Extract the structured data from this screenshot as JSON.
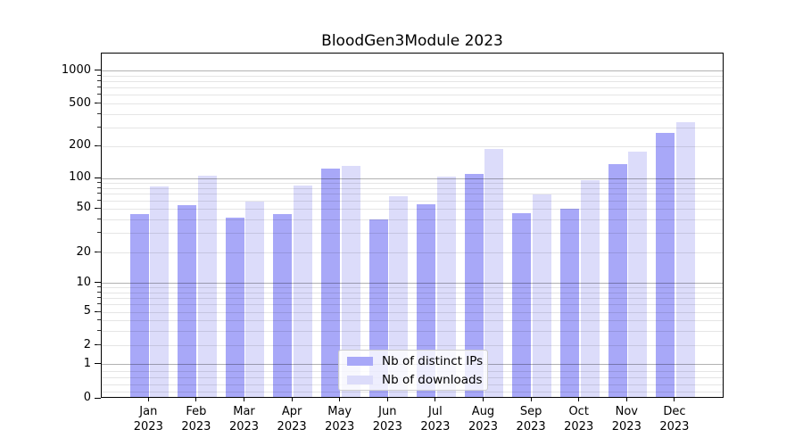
{
  "title": "BloodGen3Module 2023",
  "legend": {
    "items": [
      {
        "label": "Nb of distinct IPs",
        "color": "#a8a8f8"
      },
      {
        "label": "Nb of downloads",
        "color": "#dcdcfa"
      }
    ]
  },
  "chart_data": {
    "type": "bar",
    "title": "BloodGen3Module 2023",
    "categories": [
      "Jan 2023",
      "Feb 2023",
      "Mar 2023",
      "Apr 2023",
      "May 2023",
      "Jun 2023",
      "Jul 2023",
      "Aug 2023",
      "Sep 2023",
      "Oct 2023",
      "Nov 2023",
      "Dec 2023"
    ],
    "series": [
      {
        "name": "Nb of distinct IPs",
        "color": "#a8a8f8",
        "values": [
          43,
          52,
          40,
          43,
          120,
          39,
          53,
          107,
          44,
          48,
          133,
          257
        ]
      },
      {
        "name": "Nb of downloads",
        "color": "#dcdcfa",
        "values": [
          80,
          102,
          57,
          82,
          127,
          64,
          101,
          183,
          67,
          94,
          173,
          323
        ]
      }
    ],
    "xlabel": "",
    "ylabel": "",
    "yscale": "symlog",
    "yticks": [
      0,
      1,
      2,
      5,
      10,
      20,
      50,
      100,
      200,
      500,
      1000
    ],
    "ylim": [
      0,
      1400
    ],
    "grid": true,
    "legend_position": "lower center"
  }
}
